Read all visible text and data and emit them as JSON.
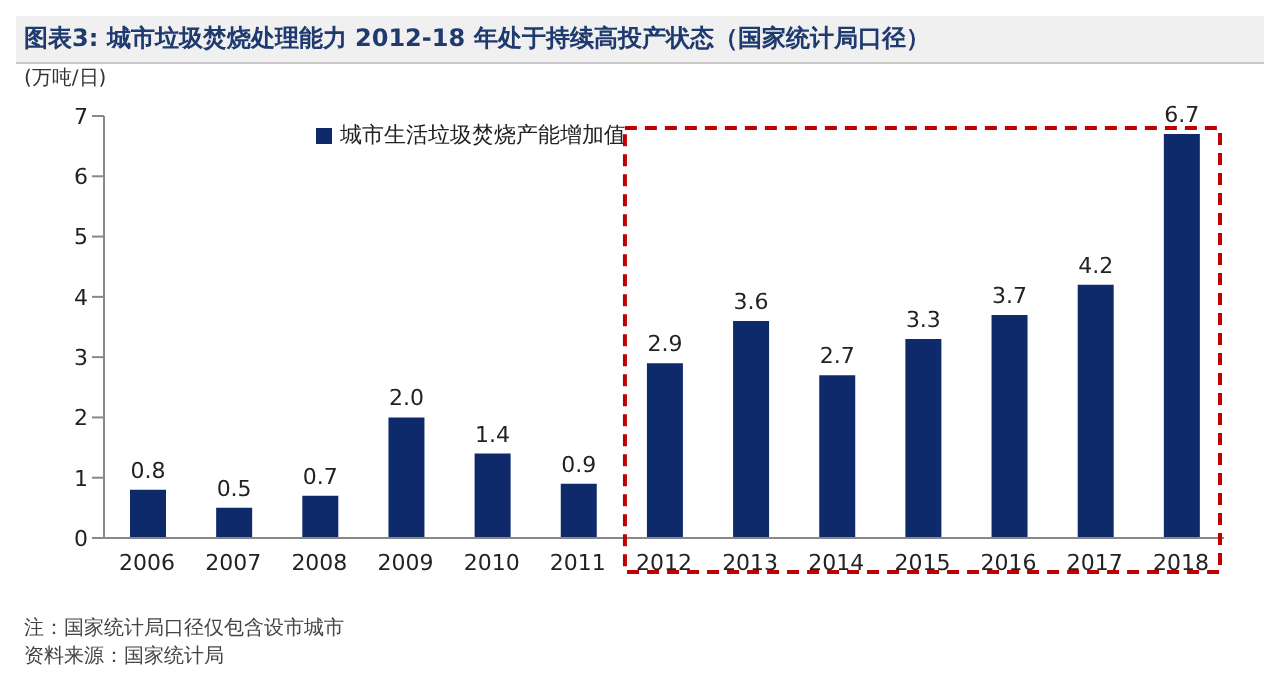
{
  "chart_data": {
    "type": "bar",
    "title": "图表3:  城市垃圾焚烧处理能力 2012-18 年处于持续高投产状态（国家统计局口径）",
    "ylabel": "(万吨/日)",
    "categories": [
      "2006",
      "2007",
      "2008",
      "2009",
      "2010",
      "2011",
      "2012",
      "2013",
      "2014",
      "2015",
      "2016",
      "2017",
      "2018"
    ],
    "series": [
      {
        "name": "城市生活垃圾焚烧产能增加值",
        "color": "#0e2a6b",
        "values": [
          0.8,
          0.5,
          0.7,
          2.0,
          1.4,
          0.9,
          2.9,
          3.6,
          2.7,
          3.3,
          3.7,
          4.2,
          6.7
        ],
        "value_labels": [
          "0.8",
          "0.5",
          "0.7",
          "2.0",
          "1.4",
          "0.9",
          "2.9",
          "3.6",
          "2.7",
          "3.3",
          "3.7",
          "4.2",
          "6.7"
        ]
      }
    ],
    "ylim": [
      0,
      7
    ],
    "yticks": [
      0,
      1,
      2,
      3,
      4,
      5,
      6,
      7
    ],
    "legend": "top",
    "annotations": [
      "注：国家统计局口径仅包含设市城市",
      "资料来源：国家统计局"
    ]
  }
}
